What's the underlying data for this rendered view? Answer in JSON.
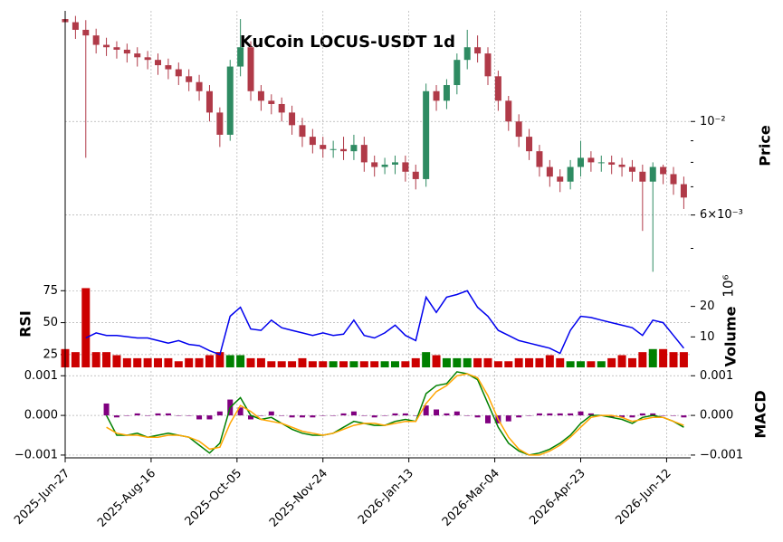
{
  "chart_data": [
    {
      "type": "candlestick",
      "title": "KuCoin LOCUS-USDT 1d",
      "ylabel": "Price",
      "x": [
        "2025-06-27",
        "2025-07-03",
        "2025-07-09",
        "2025-07-15",
        "2025-07-21",
        "2025-07-27",
        "2025-08-02",
        "2025-08-08",
        "2025-08-14",
        "2025-08-20",
        "2025-08-26",
        "2025-09-01",
        "2025-09-07",
        "2025-09-13",
        "2025-09-19",
        "2025-09-25",
        "2025-10-01",
        "2025-10-07",
        "2025-10-13",
        "2025-10-19",
        "2025-10-25",
        "2025-10-31",
        "2025-11-06",
        "2025-11-12",
        "2025-11-18",
        "2025-11-24",
        "2025-11-30",
        "2025-12-06",
        "2025-12-12",
        "2025-12-18",
        "2025-12-24",
        "2025-12-30",
        "2026-01-05",
        "2026-01-11",
        "2026-01-17",
        "2026-01-23",
        "2026-01-29",
        "2026-02-04",
        "2026-02-10",
        "2026-02-16",
        "2026-02-22",
        "2026-02-28",
        "2026-03-06",
        "2026-03-12",
        "2026-03-18",
        "2026-03-24",
        "2026-03-30",
        "2026-04-05",
        "2026-04-11",
        "2026-04-17",
        "2026-04-23",
        "2026-04-29",
        "2026-05-05",
        "2026-05-11",
        "2026-05-17",
        "2026-05-23",
        "2026-05-29",
        "2026-06-04",
        "2026-06-10",
        "2026-06-16",
        "2026-06-22"
      ],
      "xlim": [
        "2025-06-27",
        "2026-06-26"
      ],
      "xticks": [
        {
          "value": "2025-06-27",
          "label": "2025-Jun-27"
        },
        {
          "value": "2025-08-16",
          "label": "2025-Aug-16"
        },
        {
          "value": "2025-10-05",
          "label": "2025-Oct-05"
        },
        {
          "value": "2025-11-24",
          "label": "2025-Nov-24"
        },
        {
          "value": "2026-01-13",
          "label": "2026-Jan-13"
        },
        {
          "value": "2026-03-04",
          "label": "2026-Mar-04"
        },
        {
          "value": "2026-04-23",
          "label": "2026-Apr-23"
        },
        {
          "value": "2026-06-12",
          "label": "2026-Jun-12"
        }
      ],
      "open": [
        0.0175,
        0.0172,
        0.0165,
        0.016,
        0.0152,
        0.015,
        0.0148,
        0.0145,
        0.0142,
        0.014,
        0.0136,
        0.0133,
        0.0128,
        0.0124,
        0.0118,
        0.0105,
        0.0093,
        0.0135,
        0.015,
        0.0118,
        0.0112,
        0.011,
        0.0105,
        0.0098,
        0.0092,
        0.0088,
        0.0086,
        0.0086,
        0.0085,
        0.0088,
        0.008,
        0.0078,
        0.0079,
        0.008,
        0.0076,
        0.0073,
        0.0118,
        0.0112,
        0.0122,
        0.014,
        0.015,
        0.0145,
        0.0128,
        0.0112,
        0.01,
        0.0092,
        0.0085,
        0.0078,
        0.0074,
        0.0072,
        0.0078,
        0.0082,
        0.008,
        0.008,
        0.0079,
        0.0078,
        0.0076,
        0.0072,
        0.0078,
        0.0075,
        0.0071
      ],
      "high": [
        0.0183,
        0.0178,
        0.0174,
        0.0166,
        0.0158,
        0.0155,
        0.0153,
        0.015,
        0.0147,
        0.0145,
        0.0141,
        0.0138,
        0.0133,
        0.0129,
        0.0122,
        0.0108,
        0.014,
        0.0175,
        0.0155,
        0.0122,
        0.0116,
        0.0114,
        0.0109,
        0.0102,
        0.0096,
        0.0092,
        0.009,
        0.0092,
        0.0093,
        0.0092,
        0.0083,
        0.0082,
        0.0083,
        0.0083,
        0.0079,
        0.0123,
        0.0122,
        0.0126,
        0.0145,
        0.0165,
        0.016,
        0.015,
        0.0132,
        0.0115,
        0.0104,
        0.0096,
        0.0088,
        0.0081,
        0.0077,
        0.0081,
        0.009,
        0.0085,
        0.0083,
        0.0083,
        0.0082,
        0.0081,
        0.0079,
        0.008,
        0.0079,
        0.0078,
        0.0074
      ],
      "low": [
        0.0164,
        0.0157,
        0.0082,
        0.0145,
        0.0143,
        0.0141,
        0.0138,
        0.0135,
        0.0133,
        0.0129,
        0.0126,
        0.0122,
        0.0118,
        0.0112,
        0.01,
        0.0087,
        0.009,
        0.0128,
        0.0112,
        0.0106,
        0.0104,
        0.01,
        0.0093,
        0.0087,
        0.0084,
        0.0082,
        0.0082,
        0.0081,
        0.0081,
        0.0076,
        0.0074,
        0.0075,
        0.0075,
        0.0072,
        0.0069,
        0.007,
        0.0106,
        0.0107,
        0.0116,
        0.0133,
        0.0138,
        0.0122,
        0.0106,
        0.0095,
        0.0087,
        0.0081,
        0.0074,
        0.007,
        0.0068,
        0.0069,
        0.0074,
        0.0076,
        0.0076,
        0.0075,
        0.0074,
        0.0072,
        0.0055,
        0.0044,
        0.0071,
        0.0067,
        0.0062
      ],
      "close": [
        0.0172,
        0.0165,
        0.016,
        0.0152,
        0.015,
        0.0148,
        0.0145,
        0.0142,
        0.014,
        0.0136,
        0.0133,
        0.0128,
        0.0124,
        0.0118,
        0.0105,
        0.0093,
        0.0135,
        0.015,
        0.0118,
        0.0112,
        0.011,
        0.0105,
        0.0098,
        0.0092,
        0.0088,
        0.0086,
        0.0086,
        0.0085,
        0.0088,
        0.008,
        0.0078,
        0.0079,
        0.008,
        0.0076,
        0.0073,
        0.0118,
        0.0112,
        0.0122,
        0.014,
        0.015,
        0.0145,
        0.0128,
        0.0112,
        0.01,
        0.0092,
        0.0085,
        0.0078,
        0.0074,
        0.0072,
        0.0078,
        0.0082,
        0.008,
        0.008,
        0.0079,
        0.0078,
        0.0076,
        0.0072,
        0.0078,
        0.0075,
        0.0071,
        0.0066
      ],
      "up_color": "#2e8b62",
      "down_color": "#b03a48",
      "log_scale": true,
      "ylim": [
        0.0043,
        0.0183
      ],
      "yticks": [
        {
          "value": 0.01,
          "label": "10⁻²"
        },
        {
          "value": 0.006,
          "label": "6×10⁻³"
        }
      ],
      "yminorticks": [
        0.005,
        0.007,
        0.008,
        0.009
      ],
      "grid": true
    },
    {
      "type": "combo",
      "ylabel": "RSI",
      "ylim": [
        15,
        83
      ],
      "yticks": [
        25,
        50,
        75
      ],
      "rsi": {
        "color": "#0000ee",
        "values": [
          null,
          null,
          38,
          42,
          40,
          40,
          39,
          38,
          38,
          36,
          34,
          36,
          33,
          32,
          28,
          25,
          55,
          62,
          45,
          44,
          52,
          46,
          44,
          42,
          40,
          42,
          40,
          41,
          52,
          40,
          38,
          42,
          48,
          40,
          36,
          70,
          58,
          70,
          72,
          75,
          62,
          55,
          44,
          40,
          36,
          34,
          32,
          30,
          26,
          44,
          55,
          54,
          52,
          50,
          48,
          46,
          40,
          52,
          50,
          40,
          30
        ]
      },
      "y2label": "Volume",
      "y2_offset_label": "10⁶",
      "y2lim": [
        0,
        28.5
      ],
      "y2ticks": [
        10,
        20
      ],
      "volume": {
        "up_color": "#008000",
        "down_color": "#cc0000",
        "values": [
          6,
          5,
          26,
          5,
          5,
          4,
          3,
          3,
          3,
          3,
          3,
          2,
          3,
          3,
          4,
          5,
          4,
          4,
          3,
          3,
          2,
          2,
          2,
          3,
          2,
          2,
          2,
          2,
          2,
          2,
          2,
          2,
          2,
          2,
          3,
          5,
          4,
          3,
          3,
          3,
          3,
          3,
          2,
          2,
          3,
          3,
          3,
          4,
          3,
          2,
          2,
          2,
          2,
          3,
          4,
          3,
          5,
          6,
          6,
          5,
          5
        ]
      }
    },
    {
      "type": "macd",
      "ylabel": "MACD",
      "ylim": [
        -0.00107,
        0.00112
      ],
      "yticks": [
        {
          "value": 0.001,
          "label": "0.001"
        },
        {
          "value": 0,
          "label": "0.000"
        },
        {
          "value": -0.001,
          "label": "−0.001"
        }
      ],
      "macd": {
        "color": "#008000",
        "values": [
          null,
          null,
          null,
          null,
          0,
          -0.0005,
          -0.0005,
          -0.00045,
          -0.00055,
          -0.0005,
          -0.00045,
          -0.0005,
          -0.00055,
          -0.00075,
          -0.00095,
          -0.0007,
          0.0002,
          0.00045,
          0,
          -0.0001,
          -5e-05,
          -0.0002,
          -0.00035,
          -0.00045,
          -0.0005,
          -0.0005,
          -0.00045,
          -0.0003,
          -0.00015,
          -0.0002,
          -0.00025,
          -0.00025,
          -0.00015,
          -0.0001,
          -0.00015,
          0.00055,
          0.00075,
          0.0008,
          0.0011,
          0.00105,
          0.0009,
          0.0003,
          -0.0003,
          -0.0007,
          -0.0009,
          -0.001,
          -0.00095,
          -0.00085,
          -0.0007,
          -0.0005,
          -0.0002,
          0,
          0,
          -5e-05,
          -0.0001,
          -0.0002,
          -5e-05,
          0,
          -5e-05,
          -0.00015,
          -0.0003
        ]
      },
      "signal": {
        "color": "#ffa500",
        "values": [
          null,
          null,
          null,
          null,
          -0.0003,
          -0.00045,
          -0.0005,
          -0.0005,
          -0.00055,
          -0.00055,
          -0.0005,
          -0.0005,
          -0.00055,
          -0.00065,
          -0.00085,
          -0.0008,
          -0.0002,
          0.00025,
          0.0001,
          -0.0001,
          -0.00015,
          -0.0002,
          -0.0003,
          -0.0004,
          -0.00045,
          -0.0005,
          -0.00045,
          -0.00035,
          -0.00025,
          -0.0002,
          -0.0002,
          -0.00025,
          -0.0002,
          -0.00015,
          -0.00015,
          0.0003,
          0.0006,
          0.00075,
          0.001,
          0.00105,
          0.00095,
          0.0005,
          -0.0001,
          -0.00055,
          -0.00085,
          -0.001,
          -0.001,
          -0.0009,
          -0.00075,
          -0.00055,
          -0.0003,
          -5e-05,
          0,
          0,
          -5e-05,
          -0.00015,
          -0.0001,
          -5e-05,
          -5e-05,
          -0.00015,
          -0.00025
        ]
      },
      "histogram": {
        "color": "#800080",
        "values": [
          null,
          null,
          null,
          null,
          0.0003,
          -5e-05,
          0,
          5e-05,
          0,
          5e-05,
          5e-05,
          0,
          0,
          -0.0001,
          -0.0001,
          0.0001,
          0.0004,
          0.0002,
          -0.0001,
          0,
          0.0001,
          0,
          -5e-05,
          -5e-05,
          -5e-05,
          0,
          0,
          5e-05,
          0.0001,
          0,
          -5e-05,
          0,
          5e-05,
          5e-05,
          0,
          0.00025,
          0.00015,
          5e-05,
          0.0001,
          0,
          -5e-05,
          -0.0002,
          -0.0002,
          -0.00015,
          -5e-05,
          0,
          5e-05,
          5e-05,
          5e-05,
          5e-05,
          0.0001,
          5e-05,
          0,
          -5e-05,
          -5e-05,
          -5e-05,
          5e-05,
          5e-05,
          0,
          0,
          -5e-05
        ]
      }
    }
  ]
}
